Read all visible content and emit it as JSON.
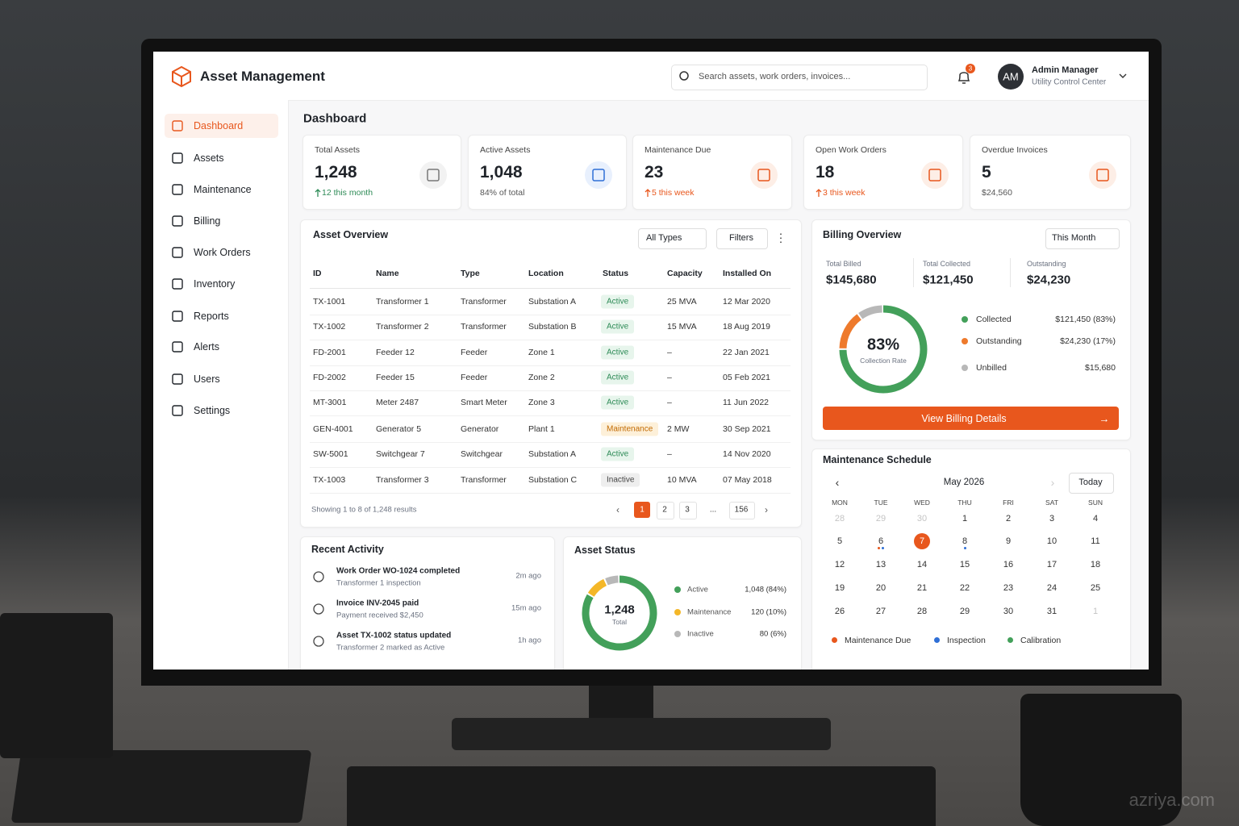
{
  "app": {
    "title": "Asset Management",
    "search": "Search assets, work orders, invoices...",
    "notifications": "3",
    "user": {
      "initials": "AM",
      "name": "Admin Manager",
      "role": "Utility Control Center"
    }
  },
  "nav": [
    "Dashboard",
    "Assets",
    "Maintenance",
    "Billing",
    "Work Orders",
    "Inventory",
    "Reports",
    "Alerts",
    "Users",
    "Settings"
  ],
  "page_title": "Dashboard",
  "stats": [
    {
      "label": "Total Assets",
      "value": "1,248",
      "note": "12 this month"
    },
    {
      "label": "Active Assets",
      "value": "1,048",
      "note": "84% of total"
    },
    {
      "label": "Maintenance Due",
      "value": "23",
      "note": "5 this week"
    },
    {
      "label": "Open Work Orders",
      "value": "18",
      "note": "3 this week"
    },
    {
      "label": "Overdue Invoices",
      "value": "5",
      "note": "$24,560"
    }
  ],
  "asset_overview": {
    "title": "Asset Overview",
    "filter": "All Types",
    "filters_button": "Filters",
    "columns": [
      "ID",
      "Name",
      "Type",
      "Location",
      "Status",
      "Capacity",
      "Installed On"
    ],
    "rows": [
      [
        "TX-1001",
        "Transformer 1",
        "Transformer",
        "Substation A",
        "Active",
        "25 MVA",
        "12 Mar 2020"
      ],
      [
        "TX-1002",
        "Transformer 2",
        "Transformer",
        "Substation B",
        "Active",
        "15 MVA",
        "18 Aug 2019"
      ],
      [
        "FD-2001",
        "Feeder 12",
        "Feeder",
        "Zone 1",
        "Active",
        "–",
        "22 Jan 2021"
      ],
      [
        "FD-2002",
        "Feeder 15",
        "Feeder",
        "Zone 2",
        "Active",
        "–",
        "05 Feb 2021"
      ],
      [
        "MT-3001",
        "Meter 2487",
        "Smart Meter",
        "Zone 3",
        "Active",
        "–",
        "11 Jun 2022"
      ],
      [
        "GEN-4001",
        "Generator 5",
        "Generator",
        "Plant 1",
        "Maintenance",
        "2 MW",
        "30 Sep 2021"
      ],
      [
        "SW-5001",
        "Switchgear 7",
        "Switchgear",
        "Substation A",
        "Active",
        "–",
        "14 Nov 2020"
      ],
      [
        "TX-1003",
        "Transformer 3",
        "Transformer",
        "Substation C",
        "Inactive",
        "10 MVA",
        "07 May 2018"
      ]
    ],
    "footer": "Showing 1 to 8 of 1,248 results",
    "pages": [
      "1",
      "2",
      "3",
      "...",
      "156"
    ]
  },
  "billing": {
    "title": "Billing Overview",
    "period": "This Month",
    "totals": [
      {
        "label": "Total Billed",
        "value": "$145,680"
      },
      {
        "label": "Total Collected",
        "value": "$121,450"
      },
      {
        "label": "Outstanding",
        "value": "$24,230"
      }
    ],
    "rate": "83%",
    "rate_label": "Collection Rate",
    "legend": [
      {
        "name": "Collected",
        "amount": 121450,
        "label": "$121,450 (83%)",
        "color": "#43a05a"
      },
      {
        "name": "Outstanding",
        "amount": 24230,
        "label": "$24,230 (17%)",
        "color": "#ee7a2c"
      },
      {
        "name": "Unbilled",
        "amount": 15680,
        "label": "$15,680",
        "color": "#b8b8b8"
      }
    ],
    "button": "View Billing Details"
  },
  "maintenance": {
    "title": "Maintenance Schedule",
    "month": "May 2026",
    "today": "Today",
    "weekdays": [
      "MON",
      "TUE",
      "WED",
      "THU",
      "FRI",
      "SAT",
      "SUN"
    ],
    "days": [
      "28",
      "29",
      "30",
      "1",
      "2",
      "3",
      "4",
      "5",
      "6",
      "7",
      "8",
      "9",
      "10",
      "11",
      "12",
      "13",
      "14",
      "15",
      "16",
      "17",
      "18",
      "19",
      "20",
      "21",
      "22",
      "23",
      "24",
      "25",
      "26",
      "27",
      "28",
      "29",
      "30",
      "31",
      "1"
    ],
    "legend": [
      {
        "name": "Maintenance Due",
        "color": "#e8571d"
      },
      {
        "name": "Inspection",
        "color": "#2f6fd6"
      },
      {
        "name": "Calibration",
        "color": "#43a05a"
      }
    ]
  },
  "activity": {
    "title": "Recent Activity",
    "items": [
      {
        "title": "Work Order WO-1024 completed",
        "detail": "Transformer 1 inspection",
        "time": "2m ago"
      },
      {
        "title": "Invoice INV-2045 paid",
        "detail": "Payment received $2,450",
        "time": "15m ago"
      },
      {
        "title": "Asset TX-1002 status updated",
        "detail": "Transformer 2 marked as Active",
        "time": "1h ago"
      }
    ]
  },
  "asset_status": {
    "title": "Asset Status",
    "total": "1,248",
    "total_label": "Total",
    "legend": [
      {
        "name": "Active",
        "count": 1048,
        "label": "1,048 (84%)",
        "color": "#43a05a"
      },
      {
        "name": "Maintenance",
        "count": 120,
        "label": "120 (10%)",
        "color": "#f4b728"
      },
      {
        "name": "Inactive",
        "count": 80,
        "label": "80 (6%)",
        "color": "#b8b8b8"
      }
    ]
  },
  "watermark": "azriya.com"
}
